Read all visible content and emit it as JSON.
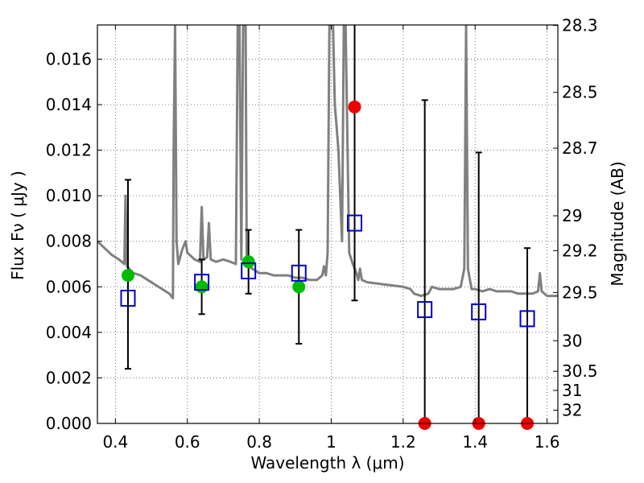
{
  "chart_data": {
    "type": "scatter",
    "xlabel": "Wavelength  λ (μm)",
    "ylabel": "Flux  Fν  ( μJy )",
    "y2label": "Magnitude (AB)",
    "xlim": [
      0.35,
      1.63
    ],
    "ylim": [
      0.0,
      0.0175
    ],
    "grid": true,
    "x_ticks": [
      0.4,
      0.6,
      0.8,
      1.0,
      1.2,
      1.4,
      1.6
    ],
    "x_tick_labels": [
      "0.4",
      "0.6",
      "0.8",
      "1",
      "1.2",
      "1.4",
      "1.6"
    ],
    "y_ticks": [
      0.0,
      0.002,
      0.004,
      0.006,
      0.008,
      0.01,
      0.012,
      0.014,
      0.016
    ],
    "y_tick_labels": [
      "0.000",
      "0.002",
      "0.004",
      "0.006",
      "0.008",
      "0.010",
      "0.012",
      "0.014",
      "0.016"
    ],
    "y2_tick_labels": [
      "28.3",
      "28.5",
      "28.7",
      "29",
      "29.2",
      "29.5",
      "30",
      "30.5",
      "31",
      "32"
    ],
    "y2_tick_flux": [
      0.01748,
      0.01454,
      0.01209,
      0.00912,
      0.00759,
      0.00575,
      0.00363,
      0.00229,
      0.00145,
      0.00058
    ],
    "colors": {
      "template": "#808080",
      "model": "#0000cc",
      "observed": "#00bb00",
      "upper_limit": "#ee0000",
      "errorbar": "#000000"
    },
    "model_points": [
      {
        "x": 0.435,
        "y": 0.0055
      },
      {
        "x": 0.64,
        "y": 0.0062
      },
      {
        "x": 0.77,
        "y": 0.0067
      },
      {
        "x": 0.91,
        "y": 0.0066
      },
      {
        "x": 1.065,
        "y": 0.0088
      },
      {
        "x": 1.26,
        "y": 0.005
      },
      {
        "x": 1.41,
        "y": 0.0049
      },
      {
        "x": 1.545,
        "y": 0.0046
      }
    ],
    "observed_points": [
      {
        "x": 0.435,
        "y": 0.0065,
        "ylo": 0.0024,
        "yhi": 0.0107
      },
      {
        "x": 0.64,
        "y": 0.006,
        "ylo": 0.0048,
        "yhi": 0.0072
      },
      {
        "x": 0.77,
        "y": 0.0071,
        "ylo": 0.0057,
        "yhi": 0.0085
      },
      {
        "x": 0.91,
        "y": 0.006,
        "ylo": 0.0035,
        "yhi": 0.0085
      }
    ],
    "upper_limit_points": [
      {
        "x": 1.065,
        "y": 0.0139,
        "ylo": 0.0054,
        "yhi": 0.0175
      },
      {
        "x": 1.26,
        "y": 0.0,
        "ylo": 0.0,
        "yhi": 0.0142
      },
      {
        "x": 1.41,
        "y": 0.0,
        "ylo": 0.0,
        "yhi": 0.0119
      },
      {
        "x": 1.545,
        "y": 0.0,
        "ylo": 0.0,
        "yhi": 0.0077
      }
    ],
    "template_spectrum": [
      [
        0.35,
        0.008
      ],
      [
        0.37,
        0.0077
      ],
      [
        0.39,
        0.0074
      ],
      [
        0.41,
        0.0072
      ],
      [
        0.425,
        0.007
      ],
      [
        0.428,
        0.01
      ],
      [
        0.432,
        0.0069
      ],
      [
        0.45,
        0.0066
      ],
      [
        0.47,
        0.0065
      ],
      [
        0.49,
        0.0063
      ],
      [
        0.51,
        0.0061
      ],
      [
        0.53,
        0.0059
      ],
      [
        0.55,
        0.0057
      ],
      [
        0.56,
        0.0055
      ],
      [
        0.562,
        0.012
      ],
      [
        0.566,
        0.0175
      ],
      [
        0.57,
        0.008
      ],
      [
        0.575,
        0.007
      ],
      [
        0.585,
        0.0076
      ],
      [
        0.595,
        0.008
      ],
      [
        0.6,
        0.0075
      ],
      [
        0.62,
        0.0072
      ],
      [
        0.635,
        0.0071
      ],
      [
        0.64,
        0.0095
      ],
      [
        0.645,
        0.0072
      ],
      [
        0.655,
        0.0073
      ],
      [
        0.66,
        0.0088
      ],
      [
        0.665,
        0.0072
      ],
      [
        0.68,
        0.0071
      ],
      [
        0.7,
        0.0072
      ],
      [
        0.72,
        0.0071
      ],
      [
        0.735,
        0.007
      ],
      [
        0.74,
        0.0175
      ],
      [
        0.745,
        0.0175
      ],
      [
        0.75,
        0.0072
      ],
      [
        0.755,
        0.0175
      ],
      [
        0.758,
        0.0175
      ],
      [
        0.762,
        0.0175
      ],
      [
        0.765,
        0.007
      ],
      [
        0.78,
        0.0068
      ],
      [
        0.8,
        0.0066
      ],
      [
        0.82,
        0.0066
      ],
      [
        0.84,
        0.0065
      ],
      [
        0.86,
        0.0065
      ],
      [
        0.88,
        0.0065
      ],
      [
        0.9,
        0.0064
      ],
      [
        0.92,
        0.0064
      ],
      [
        0.94,
        0.0063
      ],
      [
        0.96,
        0.0063
      ],
      [
        0.975,
        0.0065
      ],
      [
        0.98,
        0.0069
      ],
      [
        0.985,
        0.0065
      ],
      [
        0.99,
        0.0075
      ],
      [
        0.995,
        0.0175
      ],
      [
        1.002,
        0.0175
      ],
      [
        1.005,
        0.0175
      ],
      [
        1.01,
        0.014
      ],
      [
        1.015,
        0.013
      ],
      [
        1.02,
        0.012
      ],
      [
        1.03,
        0.008
      ],
      [
        1.035,
        0.0175
      ],
      [
        1.04,
        0.0175
      ],
      [
        1.05,
        0.0075
      ],
      [
        1.06,
        0.007
      ],
      [
        1.07,
        0.0066
      ],
      [
        1.075,
        0.0063
      ],
      [
        1.08,
        0.0068
      ],
      [
        1.085,
        0.0063
      ],
      [
        1.1,
        0.0062
      ],
      [
        1.15,
        0.0061
      ],
      [
        1.2,
        0.006
      ],
      [
        1.22,
        0.0059
      ],
      [
        1.23,
        0.0057
      ],
      [
        1.25,
        0.0056
      ],
      [
        1.27,
        0.0057
      ],
      [
        1.28,
        0.006
      ],
      [
        1.3,
        0.0059
      ],
      [
        1.32,
        0.0059
      ],
      [
        1.34,
        0.0059
      ],
      [
        1.36,
        0.006
      ],
      [
        1.37,
        0.0068
      ],
      [
        1.375,
        0.0175
      ],
      [
        1.38,
        0.0068
      ],
      [
        1.39,
        0.0059
      ],
      [
        1.4,
        0.0059
      ],
      [
        1.42,
        0.0058
      ],
      [
        1.44,
        0.0059
      ],
      [
        1.46,
        0.0058
      ],
      [
        1.48,
        0.0058
      ],
      [
        1.5,
        0.0058
      ],
      [
        1.52,
        0.0057
      ],
      [
        1.54,
        0.0057
      ],
      [
        1.56,
        0.0057
      ],
      [
        1.575,
        0.0058
      ],
      [
        1.58,
        0.0066
      ],
      [
        1.585,
        0.0058
      ],
      [
        1.6,
        0.0056
      ],
      [
        1.63,
        0.0056
      ]
    ]
  }
}
